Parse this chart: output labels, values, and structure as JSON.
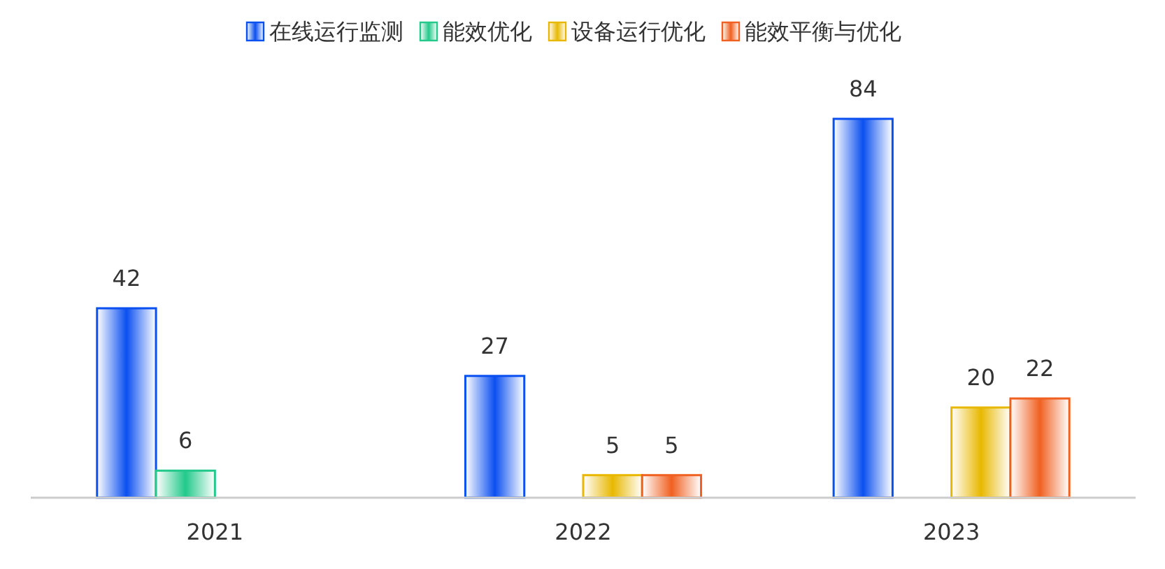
{
  "chart_data": {
    "type": "bar",
    "categories": [
      "2021",
      "2022",
      "2023"
    ],
    "series": [
      {
        "name": "在线运行监测",
        "color": "#0a4ff0",
        "values": [
          42,
          27,
          84
        ]
      },
      {
        "name": "能效优化",
        "color": "#22c98a",
        "values": [
          6,
          null,
          null
        ]
      },
      {
        "name": "设备运行优化",
        "color": "#e8b800",
        "values": [
          null,
          5,
          20
        ]
      },
      {
        "name": "能效平衡与优化",
        "color": "#f06020",
        "values": [
          null,
          5,
          22
        ]
      }
    ],
    "data_labels": true,
    "legend": "top"
  }
}
